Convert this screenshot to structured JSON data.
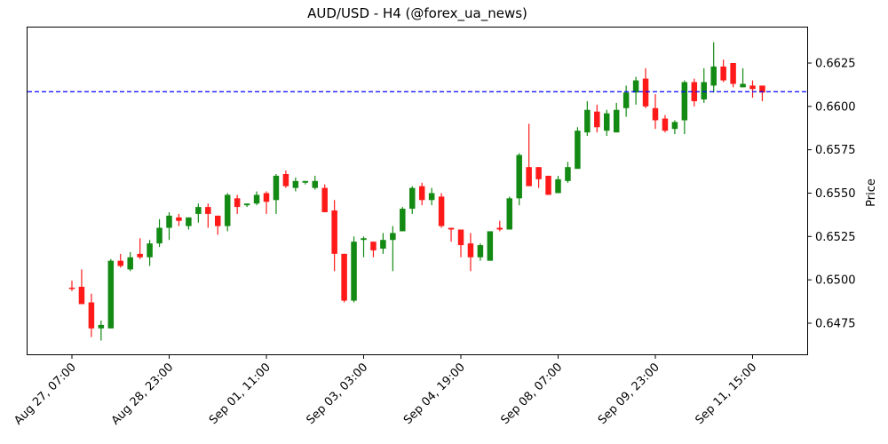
{
  "chart_data": {
    "type": "candlestick",
    "title": "AUD/USD - H4 (@forex_ua_news)",
    "xlabel": "",
    "ylabel": "Price",
    "y_axis_position": "right",
    "ylim": [
      0.6456,
      0.6645
    ],
    "yticks": [
      0.6475,
      0.65,
      0.6525,
      0.655,
      0.6575,
      0.66,
      0.6625
    ],
    "ytick_labels": [
      "0.6475",
      "0.6500",
      "0.6525",
      "0.6550",
      "0.6575",
      "0.6600",
      "0.6625"
    ],
    "xtick_labels": [
      "Aug 27, 07:00",
      "Aug 28, 23:00",
      "Sep 01, 11:00",
      "Sep 03, 03:00",
      "Sep 04, 19:00",
      "Sep 08, 07:00",
      "Sep 09, 23:00",
      "Sep 11, 15:00"
    ],
    "xtick_candle_index": [
      0,
      10,
      20,
      30,
      40,
      50,
      60,
      70
    ],
    "grid": false,
    "legend": null,
    "reference_line": {
      "value": 0.66085,
      "style": "dashed",
      "color": "#0000ff"
    },
    "colors": {
      "up": "#138a13",
      "down": "#ff1a1a"
    },
    "candles": [
      {
        "o": 0.64955,
        "h": 0.64995,
        "l": 0.64935,
        "c": 0.6495
      },
      {
        "o": 0.6496,
        "h": 0.6506,
        "l": 0.6488,
        "c": 0.6486
      },
      {
        "o": 0.6487,
        "h": 0.6492,
        "l": 0.6467,
        "c": 0.6472
      },
      {
        "o": 0.6472,
        "h": 0.64765,
        "l": 0.6465,
        "c": 0.6474
      },
      {
        "o": 0.6472,
        "h": 0.6512,
        "l": 0.6472,
        "c": 0.6511
      },
      {
        "o": 0.6511,
        "h": 0.6515,
        "l": 0.6507,
        "c": 0.6508
      },
      {
        "o": 0.6506,
        "h": 0.6516,
        "l": 0.6505,
        "c": 0.6513
      },
      {
        "o": 0.6515,
        "h": 0.6524,
        "l": 0.6512,
        "c": 0.6513
      },
      {
        "o": 0.6513,
        "h": 0.6523,
        "l": 0.6508,
        "c": 0.6521
      },
      {
        "o": 0.6521,
        "h": 0.6535,
        "l": 0.6519,
        "c": 0.653
      },
      {
        "o": 0.653,
        "h": 0.6539,
        "l": 0.6523,
        "c": 0.6537
      },
      {
        "o": 0.6536,
        "h": 0.6538,
        "l": 0.6531,
        "c": 0.6534
      },
      {
        "o": 0.6531,
        "h": 0.6536,
        "l": 0.6529,
        "c": 0.6536
      },
      {
        "o": 0.6538,
        "h": 0.6544,
        "l": 0.6533,
        "c": 0.6542
      },
      {
        "o": 0.6542,
        "h": 0.6544,
        "l": 0.653,
        "c": 0.6538
      },
      {
        "o": 0.6537,
        "h": 0.6537,
        "l": 0.6526,
        "c": 0.6531
      },
      {
        "o": 0.6531,
        "h": 0.655,
        "l": 0.6528,
        "c": 0.6549
      },
      {
        "o": 0.6547,
        "h": 0.6549,
        "l": 0.6538,
        "c": 0.6542
      },
      {
        "o": 0.6543,
        "h": 0.6544,
        "l": 0.6542,
        "c": 0.6544
      },
      {
        "o": 0.6544,
        "h": 0.6551,
        "l": 0.6543,
        "c": 0.6549
      },
      {
        "o": 0.655,
        "h": 0.6551,
        "l": 0.6538,
        "c": 0.6545
      },
      {
        "o": 0.6546,
        "h": 0.6561,
        "l": 0.6538,
        "c": 0.656
      },
      {
        "o": 0.6561,
        "h": 0.6563,
        "l": 0.6553,
        "c": 0.6554
      },
      {
        "o": 0.6553,
        "h": 0.6559,
        "l": 0.6551,
        "c": 0.6557
      },
      {
        "o": 0.6556,
        "h": 0.6557,
        "l": 0.6555,
        "c": 0.6557
      },
      {
        "o": 0.6553,
        "h": 0.656,
        "l": 0.6552,
        "c": 0.6557
      },
      {
        "o": 0.6553,
        "h": 0.6555,
        "l": 0.6539,
        "c": 0.6539
      },
      {
        "o": 0.654,
        "h": 0.6546,
        "l": 0.6505,
        "c": 0.6515
      },
      {
        "o": 0.6515,
        "h": 0.6515,
        "l": 0.6487,
        "c": 0.6488
      },
      {
        "o": 0.6488,
        "h": 0.6525,
        "l": 0.6487,
        "c": 0.6522
      },
      {
        "o": 0.6523,
        "h": 0.6525,
        "l": 0.6513,
        "c": 0.6524
      },
      {
        "o": 0.6522,
        "h": 0.6522,
        "l": 0.6513,
        "c": 0.6517
      },
      {
        "o": 0.6518,
        "h": 0.6527,
        "l": 0.6515,
        "c": 0.6523
      },
      {
        "o": 0.6523,
        "h": 0.6531,
        "l‌": 0.6505,
        "c": 0.6527,
        "l": 0.6505
      },
      {
        "o": 0.6528,
        "h": 0.6542,
        "l": 0.6528,
        "c": 0.6541
      },
      {
        "o": 0.6541,
        "h": 0.6554,
        "l": 0.6538,
        "c": 0.6553
      },
      {
        "o": 0.6554,
        "h": 0.6556,
        "l": 0.6543,
        "c": 0.6546
      },
      {
        "o": 0.6546,
        "h": 0.6553,
        "l": 0.6543,
        "c": 0.655
      },
      {
        "o": 0.6548,
        "h": 0.655,
        "l": 0.653,
        "c": 0.6531
      },
      {
        "o": 0.653,
        "h": 0.653,
        "l": 0.6522,
        "c": 0.6529
      },
      {
        "o": 0.6529,
        "h": 0.6529,
        "l": 0.6513,
        "c": 0.652
      },
      {
        "o": 0.6521,
        "h": 0.6527,
        "l": 0.6505,
        "c": 0.6513
      },
      {
        "o": 0.6513,
        "h": 0.6521,
        "l": 0.6511,
        "c": 0.652
      },
      {
        "o": 0.6511,
        "h": 0.6528,
        "l": 0.6511,
        "c": 0.6528
      },
      {
        "o": 0.653,
        "h": 0.6534,
        "l": 0.6528,
        "c": 0.6529
      },
      {
        "o": 0.6529,
        "h": 0.6548,
        "l": 0.6529,
        "c": 0.6547
      },
      {
        "o": 0.6547,
        "h": 0.6573,
        "l": 0.6543,
        "c": 0.6572
      },
      {
        "o": 0.6565,
        "h": 0.659,
        "l": 0.6556,
        "c": 0.6554
      },
      {
        "o": 0.6565,
        "h": 0.6565,
        "l": 0.6553,
        "c": 0.6558
      },
      {
        "o": 0.656,
        "h": 0.656,
        "l": 0.6549,
        "c": 0.6549
      },
      {
        "o": 0.655,
        "h": 0.656,
        "l": 0.655,
        "c": 0.6558
      },
      {
        "o": 0.6557,
        "h": 0.6568,
        "l": 0.6556,
        "c": 0.6565
      },
      {
        "o": 0.6564,
        "h": 0.6588,
        "l": 0.6564,
        "c": 0.6586
      },
      {
        "o": 0.6585,
        "h": 0.6603,
        "l": 0.6583,
        "c": 0.6598
      },
      {
        "o": 0.6597,
        "h": 0.6601,
        "l": 0.6585,
        "c": 0.6588
      },
      {
        "o": 0.6586,
        "h": 0.6598,
        "l": 0.6583,
        "c": 0.6596
      },
      {
        "o": 0.6585,
        "h": 0.6602,
        "l": 0.6585,
        "c": 0.6598
      },
      {
        "o": 0.6599,
        "h": 0.6612,
        "l": 0.6594,
        "c": 0.6608
      },
      {
        "o": 0.6608,
        "h": 0.6617,
        "l": 0.6601,
        "c": 0.6615
      },
      {
        "o": 0.6616,
        "h": 0.6622,
        "l": 0.6599,
        "c": 0.66
      },
      {
        "o": 0.6599,
        "h": 0.6607,
        "l": 0.6587,
        "c": 0.6592
      },
      {
        "o": 0.6593,
        "h": 0.6595,
        "l": 0.6585,
        "c": 0.6586
      },
      {
        "o": 0.6587,
        "h": 0.6592,
        "l": 0.6584,
        "c": 0.6591
      },
      {
        "o": 0.6592,
        "h": 0.6615,
        "l": 0.6584,
        "c": 0.6614
      },
      {
        "o": 0.6614,
        "h": 0.6616,
        "l": 0.66,
        "c": 0.6603
      },
      {
        "o": 0.6604,
        "h": 0.6622,
        "l": 0.6602,
        "c": 0.6614
      },
      {
        "o": 0.6612,
        "h": 0.6637,
        "l": 0.6608,
        "c": 0.6623
      },
      {
        "o": 0.6623,
        "h": 0.6627,
        "l": 0.6614,
        "c": 0.6615
      },
      {
        "o": 0.6625,
        "h": 0.6625,
        "l": 0.6611,
        "c": 0.6613
      },
      {
        "o": 0.6611,
        "h": 0.6622,
        "l": 0.6611,
        "c": 0.6613
      },
      {
        "o": 0.6612,
        "h": 0.6615,
        "l": 0.6605,
        "c": 0.661
      },
      {
        "o": 0.6612,
        "h": 0.6612,
        "l": 0.6603,
        "c": 0.6608
      }
    ]
  }
}
